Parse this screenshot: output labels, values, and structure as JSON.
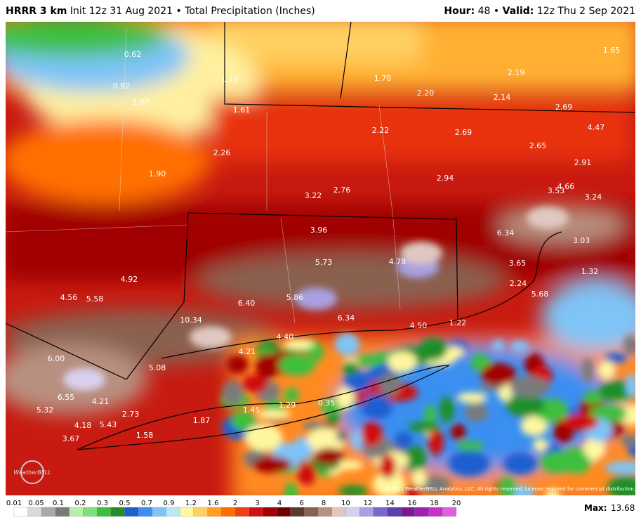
{
  "header": {
    "model": "HRRR 3 km",
    "description": "Init 12z 31 Aug 2021 • Total Precipitation (Inches)",
    "hour_label": "Hour:",
    "hour": "48 •",
    "valid_label": "Valid:",
    "valid": "12z Thu 2 Sep 2021"
  },
  "map": {
    "labels": [
      "0.62",
      "0.92",
      "1.07",
      "1.12",
      "1.61",
      "1.70",
      "2.20",
      "2.19",
      "1.65",
      "2.14",
      "2.69",
      "4.47",
      "2.22",
      "2.69",
      "2.65",
      "2.26",
      "1.90",
      "2.94",
      "3.22",
      "2.76",
      "3.53",
      "4.66",
      "2.91",
      "3.24",
      "3.96",
      "6.34",
      "3.03",
      "5.73",
      "4.78",
      "3.65",
      "1.32",
      "4.92",
      "4.56",
      "5.58",
      "6.40",
      "5.86",
      "2.24",
      "5.68",
      "10.34",
      "6.34",
      "4.50",
      "1.22",
      "4.40",
      "4.21",
      "6.00",
      "5.08",
      "6.55",
      "4.21",
      "5.32",
      "2.73",
      "1.45",
      "1.29",
      "0.35",
      "1.87",
      "4.18",
      "5.43",
      "3.67",
      "1.58"
    ],
    "copyright": "© 2021 WeatherBELL Analytics, LLC. All rights reserved. License required for commercial distribution.",
    "logo": "WeatherBELL"
  },
  "colorbar": {
    "ticks": [
      "0.01",
      "0.05",
      "0.1",
      "0.2",
      "0.3",
      "0.5",
      "0.7",
      "0.9",
      "1.2",
      "1.6",
      "2",
      "3",
      "4",
      "6",
      "8",
      "10",
      "12",
      "14",
      "16",
      "18",
      "20"
    ],
    "colors": [
      "#ffffff",
      "#d9d9d9",
      "#a8a8a8",
      "#7a7a7a",
      "#b6f0a8",
      "#7ee07a",
      "#3cbf3c",
      "#1f8f2a",
      "#1e5fd0",
      "#3b8ff0",
      "#7ec4f7",
      "#b8e8f8",
      "#fff7a0",
      "#ffd060",
      "#ffa020",
      "#ff7000",
      "#f04010",
      "#d01010",
      "#a00000",
      "#700000",
      "#5a3a30",
      "#8a6050",
      "#b89080",
      "#e0c8c0",
      "#d8d0ee",
      "#a8a0e0",
      "#7868c8",
      "#5a40a8",
      "#7a1a90",
      "#a020b0",
      "#c830c8",
      "#e060e0"
    ],
    "max_label": "Max:",
    "max": "13.68"
  }
}
